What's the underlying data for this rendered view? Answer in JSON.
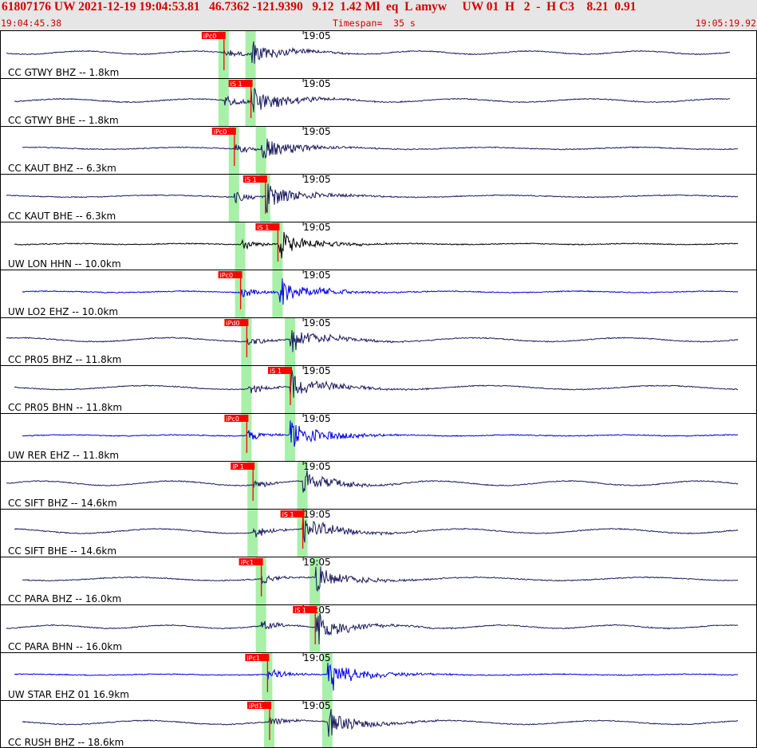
{
  "header": {
    "title": "61807176 UW 2021-12-19 19:04:53.81   46.7362 -121.9390   9.12  1.42 Ml  eq  L amyw     UW 01  H   2  -  H C3    8.21  0.91",
    "start_time": "19:04:45.38",
    "timespan_label": "Timespan=  35 s",
    "end_time": "19:05:19.92"
  },
  "chart_data": {
    "type": "line",
    "title": "61807176 UW 2021-12-19 19:04:53.81",
    "x_axis": {
      "start": "19:04:45.38",
      "end": "19:05:19.92",
      "span_s": 35,
      "minute_tick_label": "19:05",
      "minute_tick_s": 14.62
    },
    "colors": {
      "pick": "#ff0000",
      "window": "#a8f0a8",
      "trace_dark": "#1a1a5e",
      "trace_blue": "#0000ee",
      "trace_black": "#000000"
    },
    "traces": [
      {
        "label": "CC GTWY BHZ -- 1.8km",
        "color": "#1a1a5e",
        "p_s": 10.8,
        "s_s": 12.1,
        "pick_label": "iPc0",
        "pick_at": "p",
        "amp": 11,
        "noise": 0.1,
        "end_s": 35.2
      },
      {
        "label": "CC GTWY BHE -- 1.8km",
        "color": "#1a1a5e",
        "p_s": 10.8,
        "s_s": 12.1,
        "pick_label": "iS 1",
        "pick_at": "s",
        "amp": 14,
        "noise": 0.1,
        "end_s": 35.2
      },
      {
        "label": "CC KAUT BHZ -- 6.3km",
        "color": "#1a1a5e",
        "p_s": 11.3,
        "s_s": 12.6,
        "pick_label": "iPc0",
        "pick_at": "p",
        "amp": 12,
        "noise": 0.06,
        "end_s": 35.6
      },
      {
        "label": "CC KAUT BHE -- 6.3km",
        "color": "#1a1a5e",
        "p_s": 11.3,
        "s_s": 12.8,
        "pick_label": "iS 1",
        "pick_at": "s",
        "amp": 14,
        "noise": 0.06,
        "end_s": 35.6
      },
      {
        "label": "UW LON HHN -- 10.0km",
        "color": "#000000",
        "p_s": 11.6,
        "s_s": 13.4,
        "pick_label": "iS 1",
        "pick_at": "s",
        "amp": 13,
        "noise": 0.03,
        "end_s": 36.1
      },
      {
        "label": "UW LO2 EHZ -- 10.0km",
        "color": "#0000ee",
        "p_s": 11.6,
        "s_s": 13.4,
        "pick_label": "iPc0",
        "pick_at": "p",
        "amp": 14,
        "noise": 0.04,
        "end_s": 36.1
      },
      {
        "label": "CC PR05 BHZ -- 11.8km",
        "color": "#1a1a5e",
        "p_s": 11.9,
        "s_s": 14.0,
        "pick_label": "iPd0",
        "pick_at": "p",
        "amp": 12,
        "noise": 0.12,
        "end_s": 36.4
      },
      {
        "label": "CC PR05 BHN -- 11.8km",
        "color": "#1a1a5e",
        "p_s": 11.9,
        "s_s": 14.0,
        "pick_label": "iS 1",
        "pick_at": "s",
        "amp": 14,
        "noise": 0.12,
        "end_s": 36.4
      },
      {
        "label": "UW RER EHZ -- 11.8km",
        "color": "#0000ee",
        "p_s": 11.9,
        "s_s": 14.0,
        "pick_label": "iPc0",
        "pick_at": "p",
        "amp": 15,
        "noise": 0.03,
        "end_s": 36.4
      },
      {
        "label": "CC SIFT BHZ -- 14.6km",
        "color": "#1a1a5e",
        "p_s": 12.2,
        "s_s": 14.6,
        "pick_label": "iP 1",
        "pick_at": "p",
        "amp": 11,
        "noise": 0.14,
        "end_s": 36.4
      },
      {
        "label": "CC SIFT BHE -- 14.6km",
        "color": "#1a1a5e",
        "p_s": 12.2,
        "s_s": 14.6,
        "pick_label": "iS 1",
        "pick_at": "s",
        "amp": 14,
        "noise": 0.14,
        "end_s": 36.4
      },
      {
        "label": "CC PARA BHZ -- 16.0km",
        "color": "#1a1a5e",
        "p_s": 12.6,
        "s_s": 15.2,
        "pick_label": "iPc1",
        "pick_at": "p",
        "amp": 12,
        "noise": 0.1,
        "end_s": 36.4
      },
      {
        "label": "CC PARA BHN -- 16.0km",
        "color": "#1a1a5e",
        "p_s": 12.6,
        "s_s": 15.2,
        "pick_label": "iS 1",
        "pick_at": "s",
        "amp": 14,
        "noise": 0.1,
        "end_s": 36.4
      },
      {
        "label": "UW STAR EHZ 01 16.9km",
        "color": "#0000ee",
        "p_s": 12.9,
        "s_s": 15.8,
        "pick_label": "iPc1",
        "pick_at": "p",
        "amp": 15,
        "noise": 0.03,
        "end_s": 36.4
      },
      {
        "label": "CC RUSH BHZ -- 18.6km",
        "color": "#1a1a5e",
        "p_s": 13.0,
        "s_s": 15.8,
        "pick_label": "iPd1",
        "pick_at": "p",
        "amp": 12,
        "noise": 0.12,
        "end_s": 36.4
      }
    ]
  }
}
